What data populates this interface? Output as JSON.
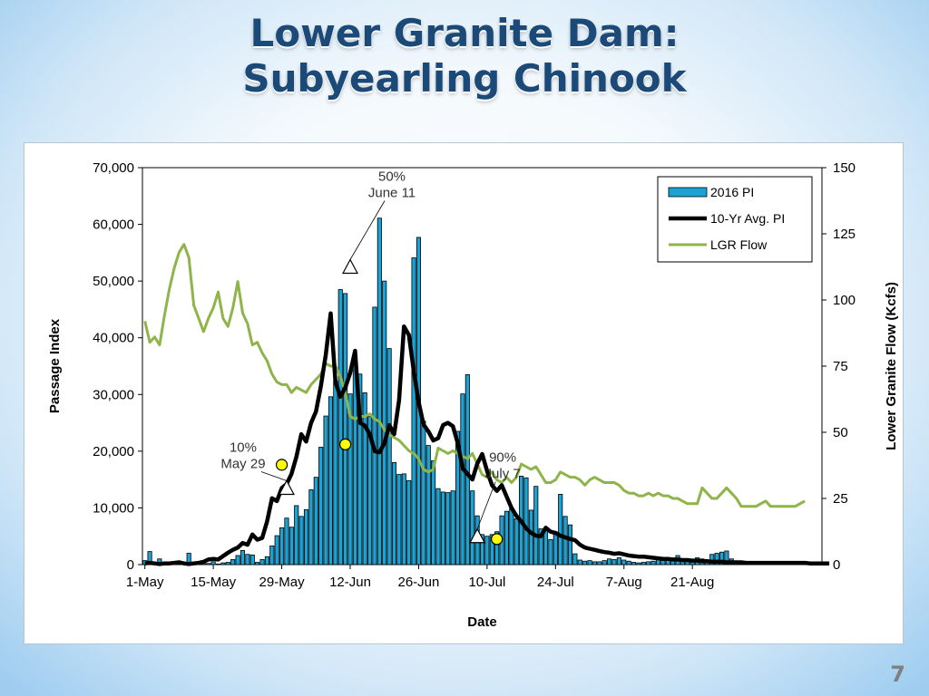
{
  "slide": {
    "title_line1": "Lower Granite Dam:",
    "title_line2": "Subyearling Chinook",
    "page_number": "7"
  },
  "chart_data": {
    "type": "bar",
    "xlabel": "Date",
    "ylabel": "Passage Index",
    "y2label": "Lower Granite Flow  (Kcfs)",
    "ylim": [
      0,
      70000
    ],
    "y2lim": [
      0,
      150
    ],
    "yticks": [
      "0",
      "10,000",
      "20,000",
      "30,000",
      "40,000",
      "50,000",
      "60,000",
      "70,000"
    ],
    "y2ticks": [
      "0",
      "25",
      "50",
      "75",
      "100",
      "125",
      "150"
    ],
    "xticks": [
      "1-May",
      "15-May",
      "29-May",
      "12-Jun",
      "26-Jun",
      "10-Jul",
      "24-Jul",
      "7-Aug",
      "21-Aug"
    ],
    "legend_position": "top-right",
    "bar_color": "#1aa3d4",
    "avg_color": "#000000",
    "flow_color": "#8fb449",
    "series": [
      {
        "name": "2016 PI",
        "type": "bar",
        "axis": "left",
        "values": [
          700,
          2300,
          400,
          1000,
          300,
          200,
          0,
          0,
          0,
          2000,
          0,
          100,
          200,
          200,
          500,
          100,
          300,
          400,
          900,
          1600,
          2500,
          1800,
          1700,
          400,
          900,
          1400,
          3300,
          5100,
          6500,
          8200,
          6600,
          10400,
          8500,
          9700,
          13200,
          15400,
          20700,
          26200,
          29600,
          32400,
          48500,
          47800,
          30100,
          36100,
          33600,
          30300,
          26100,
          45400,
          61100,
          50000,
          38100,
          18000,
          15900,
          16000,
          14800,
          54100,
          57700,
          25300,
          21000,
          18300,
          13400,
          12800,
          12700,
          13000,
          23500,
          30100,
          33500,
          13000,
          8600,
          5300,
          5000,
          5300,
          5800,
          8600,
          9400,
          10000,
          8100,
          15600,
          15300,
          9600,
          13800,
          6300,
          6100,
          4400,
          5600,
          12400,
          8500,
          7000,
          1900,
          800,
          600,
          700,
          500,
          500,
          700,
          1000,
          900,
          1200,
          800,
          600,
          400,
          300,
          400,
          500,
          600,
          900,
          1200,
          800,
          700,
          1600,
          800,
          600,
          900,
          1200,
          1000,
          800,
          1800,
          2000,
          2200,
          2400,
          1000,
          600,
          300,
          400,
          300,
          400,
          200,
          300,
          100,
          200,
          100,
          200,
          100,
          100,
          200,
          100,
          100,
          100,
          100
        ]
      },
      {
        "name": "10-Yr Avg. PI",
        "type": "line",
        "axis": "left",
        "values": [
          200,
          300,
          200,
          100,
          200,
          200,
          300,
          400,
          200,
          100,
          200,
          300,
          500,
          900,
          1000,
          900,
          1500,
          2100,
          2600,
          3000,
          3800,
          3500,
          5300,
          4400,
          4700,
          7600,
          11700,
          11200,
          13500,
          14200,
          16000,
          19000,
          23000,
          21700,
          25000,
          27000,
          31500,
          37000,
          44300,
          32100,
          29600,
          31200,
          33800,
          37700,
          25000,
          24500,
          23000,
          20000,
          19800,
          21400,
          24600,
          23000,
          29000,
          42000,
          40500,
          34100,
          28700,
          24700,
          23500,
          21900,
          22300,
          24600,
          25000,
          24400,
          21400,
          17000,
          16000,
          15000,
          17800,
          19500,
          16500,
          14000,
          13000,
          14000,
          12000,
          10000,
          8600,
          7600,
          6400,
          5600,
          5100,
          5000,
          6500,
          5800,
          5600,
          5100,
          4800,
          4500,
          4300,
          3500,
          3000,
          2800,
          2600,
          2400,
          2200,
          2100,
          1900,
          2000,
          1800,
          1600,
          1500,
          1400,
          1400,
          1300,
          1200,
          1100,
          1000,
          1000,
          900,
          900,
          800,
          800,
          700,
          700,
          600,
          600,
          500,
          500,
          500,
          400,
          400,
          400,
          400,
          300,
          300,
          300,
          300,
          300,
          300,
          300,
          300,
          300,
          300,
          300,
          300,
          300,
          200,
          200,
          200,
          200,
          200
        ]
      },
      {
        "name": "LGR Flow",
        "type": "line",
        "axis": "right",
        "values": [
          92,
          84,
          86,
          83,
          94,
          104,
          112,
          118,
          121,
          116,
          98,
          93,
          88,
          93,
          97,
          103,
          93,
          90,
          97,
          107,
          95,
          91,
          83,
          84,
          80,
          77,
          72,
          69,
          68,
          68,
          65,
          67,
          66,
          65,
          68,
          70,
          72,
          76,
          75,
          75,
          71,
          65,
          56,
          55,
          56,
          56,
          57,
          55,
          54,
          51,
          49,
          48,
          47,
          45,
          43,
          42,
          40,
          36,
          35,
          36,
          44,
          43,
          42,
          43,
          42,
          41,
          40,
          42,
          38,
          34,
          33,
          35,
          32,
          31,
          33,
          31,
          33,
          38,
          37,
          36,
          37,
          34,
          31,
          31,
          32,
          35,
          34,
          33,
          33,
          32,
          30,
          32,
          33,
          32,
          31,
          31,
          31,
          30,
          28,
          27,
          27,
          26,
          26,
          27,
          26,
          27,
          26,
          26,
          25,
          25,
          24,
          23,
          23,
          23,
          29,
          27,
          25,
          25,
          27,
          29,
          27,
          25,
          22,
          22,
          22,
          22,
          23,
          24,
          22,
          22,
          22,
          22,
          22,
          22,
          23,
          24
        ]
      }
    ],
    "annotations": [
      {
        "label": "10%",
        "date": "May 29",
        "x_index": 29,
        "pi_value": 13500
      },
      {
        "label": "50%",
        "date": "June 11",
        "x_index": 42,
        "pi_value": 52500
      },
      {
        "label": "90%",
        "date": "July 7",
        "x_index": 68,
        "pi_value": 5000
      }
    ],
    "markers_yellow": [
      {
        "x_index": 28,
        "pi_value": 17600
      },
      {
        "x_index": 41,
        "pi_value": 21200
      },
      {
        "x_index": 72,
        "pi_value": 4500
      }
    ]
  }
}
